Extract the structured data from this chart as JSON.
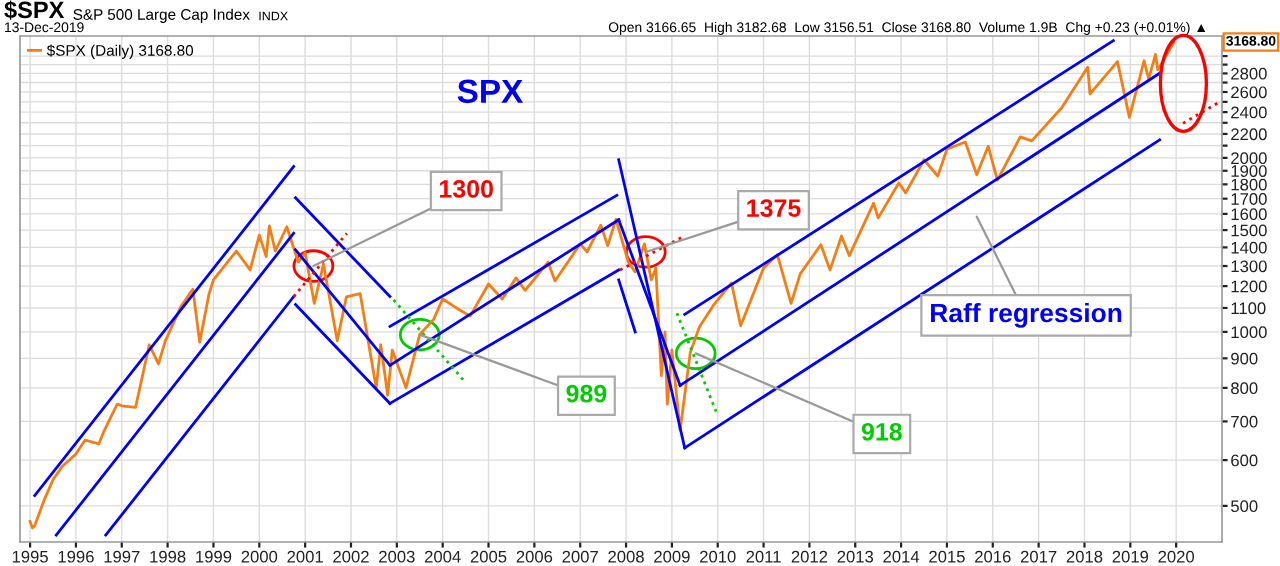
{
  "chart_data": {
    "type": "line",
    "title": "$SPX",
    "subtitle": "S&P 500 Large Cap Index",
    "annotations": [
      "INDX",
      "13-Dec-2019",
      "Open 3166.65  High 3182.68  Low 3156.51  Close 3168.80  Volume 1.9B  Chg +0.23 (+0.01%) ▲",
      "SPX",
      {
        "text": "1300",
        "x": 2001.18,
        "y": 1300
      },
      {
        "text": "989",
        "x": 2003.5,
        "y": 989
      },
      {
        "text": "1375",
        "x": 2008.43,
        "y": 1375
      },
      {
        "text": "918",
        "x": 2009.52,
        "y": 918
      },
      "Raff regression",
      "3168.80"
    ],
    "series": [
      {
        "name": "$SPX (Daily) 3168.80",
        "color": "#f57d14",
        "x": [
          1995.0,
          1995.05,
          1995.1,
          1995.3,
          1995.5,
          1995.7,
          1996.0,
          1996.2,
          1996.5,
          1996.6,
          1996.9,
          1997.0,
          1997.3,
          1997.6,
          1997.8,
          1997.95,
          1998.3,
          1998.55,
          1998.7,
          1998.9,
          1999.0,
          1999.5,
          1999.8,
          2000.0,
          2000.15,
          2000.22,
          2000.35,
          2000.6,
          2000.85,
          2001.0,
          2001.2,
          2001.4,
          2001.7,
          2001.9,
          2002.2,
          2002.55,
          2002.65,
          2002.8,
          2002.9,
          2003.2,
          2003.5,
          2003.8,
          2004.0,
          2004.3,
          2004.6,
          2005.0,
          2005.3,
          2005.6,
          2005.8,
          2006.3,
          2006.45,
          2007.0,
          2007.15,
          2007.45,
          2007.6,
          2007.78,
          2008.05,
          2008.2,
          2008.4,
          2008.55,
          2008.65,
          2008.77,
          2008.85,
          2008.9,
          2009.0,
          2009.18,
          2009.4,
          2009.6,
          2009.9,
          2010.3,
          2010.5,
          2011.0,
          2011.3,
          2011.6,
          2011.8,
          2012.25,
          2012.45,
          2012.7,
          2012.87,
          2013.4,
          2013.5,
          2013.95,
          2014.1,
          2014.5,
          2014.8,
          2015.0,
          2015.4,
          2015.65,
          2015.9,
          2016.1,
          2016.6,
          2016.85,
          2017.5,
          2018.07,
          2018.12,
          2018.72,
          2018.98,
          2019.3,
          2019.4,
          2019.55,
          2019.6,
          2019.95
        ],
        "values": [
          470,
          458,
          462,
          510,
          555,
          585,
          615,
          650,
          640,
          670,
          750,
          745,
          740,
          950,
          880,
          965,
          1110,
          1185,
          960,
          1160,
          1230,
          1380,
          1280,
          1470,
          1350,
          1525,
          1380,
          1520,
          1320,
          1370,
          1120,
          1310,
          965,
          1150,
          1165,
          800,
          950,
          777,
          930,
          800,
          990,
          1050,
          1140,
          1100,
          1065,
          1210,
          1140,
          1240,
          1180,
          1320,
          1225,
          1420,
          1375,
          1530,
          1410,
          1565,
          1320,
          1270,
          1420,
          1230,
          1290,
          840,
          1000,
          750,
          930,
          676,
          920,
          1020,
          1110,
          1215,
          1025,
          1290,
          1360,
          1120,
          1260,
          1415,
          1280,
          1465,
          1355,
          1670,
          1575,
          1810,
          1740,
          1985,
          1860,
          2070,
          2130,
          1870,
          2095,
          1830,
          2175,
          2140,
          2440,
          2870,
          2580,
          2935,
          2350,
          2945,
          2740,
          3020,
          2840,
          3168.8
        ]
      },
      {
        "color": "#0000ff",
        "x": [
          1995.1,
          2000.75
        ],
        "values": [
          521,
          1932
        ]
      },
      {
        "color": "#0000ff",
        "x": [
          1995.57,
          2000.75
        ],
        "values": [
          445,
          1481
        ]
      },
      {
        "color": "#0000ff",
        "x": [
          1996.65,
          2000.75
        ],
        "values": [
          445,
          1151
        ]
      },
      {
        "color": "#0000ff",
        "x": [
          2000.79,
          2002.85
        ],
        "values": [
          1706,
          1151
        ]
      },
      {
        "color": "#0000ff",
        "x": [
          2000.79,
          2002.85
        ],
        "values": [
          1387,
          875
        ]
      },
      {
        "color": "#0000ff",
        "x": [
          2000.79,
          2002.85
        ],
        "values": [
          1115,
          752
        ]
      },
      {
        "color": "#0000ff",
        "x": [
          2002.85,
          2007.8
        ],
        "values": [
          1022,
          1723
        ]
      },
      {
        "color": "#0000ff",
        "x": [
          2002.85,
          2007.84
        ],
        "values": [
          875,
          1563
        ]
      },
      {
        "color": "#0000ff",
        "x": [
          2002.85,
          2007.84
        ],
        "values": [
          752,
          1280
        ]
      },
      {
        "color": "#0000ff",
        "x": [
          2007.84,
          2009.28
        ],
        "values": [
          1985,
          630
        ]
      },
      {
        "color": "#0000ff",
        "x": [
          2007.84,
          2009.18
        ],
        "values": [
          1563,
          808
        ]
      },
      {
        "color": "#0000ff",
        "x": [
          2007.84,
          2008.2
        ],
        "values": [
          1230,
          1000
        ]
      },
      {
        "color": "#0000ff",
        "x": [
          2009.28,
          2018.63
        ],
        "values": [
          1072,
          3190
        ]
      },
      {
        "color": "#0000ff",
        "x": [
          2009.18,
          2019.64
        ],
        "values": [
          808,
          2802
        ]
      },
      {
        "color": "#0000ff",
        "x": [
          2009.28,
          2019.64
        ],
        "values": [
          630,
          2149
        ]
      },
      {
        "color": "#ff0000",
        "line_style": "dotted",
        "x": [
          2000.75,
          2001.91
        ],
        "values": [
          1151,
          1481
        ]
      },
      {
        "color": "#ff0000",
        "line_style": "dotted",
        "x": [
          2007.87,
          2009.25
        ],
        "values": [
          1280,
          1462
        ]
      },
      {
        "color": "#ff0000",
        "line_style": "dotted",
        "x": [
          2020.15,
          2020.95
        ],
        "values": [
          2296,
          2500
        ]
      },
      {
        "color": "#00cc00",
        "line_style": "dotted",
        "x": [
          2002.93,
          2004.45
        ],
        "values": [
          1136,
          826
        ]
      },
      {
        "color": "#00cc00",
        "line_style": "dotted",
        "x": [
          2009.11,
          2009.98
        ],
        "values": [
          1077,
          723
        ]
      }
    ],
    "xlim": [
      1994.78,
      2021.0
    ],
    "ylim": [
      433,
      3250
    ],
    "xticks": [
      1995,
      1996,
      1997,
      1998,
      1999,
      2000,
      2001,
      2002,
      2003,
      2004,
      2005,
      2006,
      2007,
      2008,
      2009,
      2010,
      2011,
      2012,
      2013,
      2014,
      2015,
      2016,
      2017,
      2018,
      2019,
      2020
    ],
    "yticks": [
      500,
      600,
      700,
      800,
      900,
      1000,
      1100,
      1200,
      1300,
      1400,
      1500,
      1600,
      1700,
      1800,
      1900,
      2000,
      {
        "value": 2100,
        "label": null
      },
      2200,
      {
        "value": 2300,
        "label": null
      },
      2400,
      {
        "value": 2500,
        "label": null
      },
      2600,
      {
        "value": 2700,
        "label": null
      },
      2800,
      {
        "value": 2900,
        "label": null
      },
      {
        "value": 3000,
        "label": null
      }
    ],
    "log": true,
    "grid": true,
    "legend": "top left"
  }
}
